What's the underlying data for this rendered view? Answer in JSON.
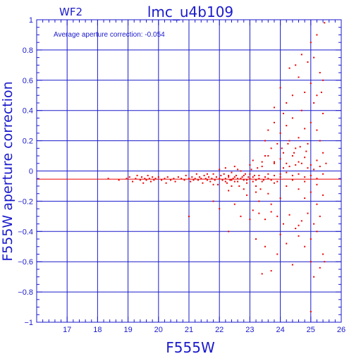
{
  "chart_data": {
    "type": "scatter",
    "title": "lmc_u4b109",
    "panel_label": "WF2",
    "xlabel": "F555W",
    "ylabel": "F555W aperture correction",
    "annotation": "Average aperture correction: -0.054",
    "xlim": [
      16,
      26
    ],
    "ylim": [
      -1,
      1
    ],
    "xticks": [
      17,
      18,
      19,
      20,
      21,
      22,
      23,
      24,
      25,
      26
    ],
    "yticks": [
      -1,
      -0.8,
      -0.6,
      -0.4,
      -0.2,
      0,
      0.2,
      0.4,
      0.6,
      0.8,
      1
    ],
    "ytick_labels": [
      "−1",
      "−0.8",
      "−0.6",
      "−0.4",
      "−0.2",
      "0",
      "0.2",
      "0.4",
      "0.6",
      "0.8",
      "1"
    ],
    "grid": true,
    "average_line_y": -0.054,
    "colors": {
      "axes": "#1a1acc",
      "points": "#ee0000",
      "average_line": "#ee0000",
      "background": "#ffffff"
    },
    "points": [
      [
        18.35,
        -0.05
      ],
      [
        18.7,
        -0.06
      ],
      [
        18.95,
        -0.05
      ],
      [
        19.05,
        -0.04
      ],
      [
        19.15,
        -0.07
      ],
      [
        19.25,
        -0.05
      ],
      [
        19.3,
        -0.03
      ],
      [
        19.4,
        -0.06
      ],
      [
        19.45,
        -0.04
      ],
      [
        19.5,
        -0.08
      ],
      [
        19.55,
        -0.05
      ],
      [
        19.6,
        -0.06
      ],
      [
        19.65,
        -0.03
      ],
      [
        19.7,
        -0.05
      ],
      [
        19.75,
        -0.07
      ],
      [
        19.8,
        -0.04
      ],
      [
        19.85,
        -0.06
      ],
      [
        19.9,
        -0.05
      ],
      [
        20.0,
        -0.04
      ],
      [
        20.1,
        -0.06
      ],
      [
        20.2,
        -0.05
      ],
      [
        20.25,
        -0.08
      ],
      [
        20.3,
        -0.04
      ],
      [
        20.4,
        -0.06
      ],
      [
        20.5,
        -0.05
      ],
      [
        20.55,
        -0.07
      ],
      [
        20.65,
        -0.04
      ],
      [
        20.75,
        -0.05
      ],
      [
        20.85,
        -0.06
      ],
      [
        20.9,
        -0.03
      ],
      [
        21.0,
        -0.05
      ],
      [
        21.05,
        -0.07
      ],
      [
        21.1,
        -0.04
      ],
      [
        21.15,
        -0.06
      ],
      [
        21.2,
        -0.05
      ],
      [
        21.25,
        -0.02
      ],
      [
        21.3,
        -0.06
      ],
      [
        21.35,
        -0.04
      ],
      [
        21.4,
        -0.05
      ],
      [
        21.45,
        -0.08
      ],
      [
        21.5,
        -0.03
      ],
      [
        21.55,
        -0.05
      ],
      [
        21.6,
        -0.06
      ],
      [
        21.65,
        -0.04
      ],
      [
        21.7,
        -0.07
      ],
      [
        21.75,
        -0.05
      ],
      [
        21.8,
        -0.02
      ],
      [
        21.85,
        -0.06
      ],
      [
        21.9,
        -0.04
      ],
      [
        21.95,
        -0.09
      ],
      [
        22.0,
        -0.05
      ],
      [
        22.05,
        -0.03
      ],
      [
        22.1,
        -0.06
      ],
      [
        22.15,
        -0.02
      ],
      [
        22.2,
        -0.05
      ],
      [
        22.25,
        -0.08
      ],
      [
        22.3,
        -0.04
      ],
      [
        22.35,
        -0.06
      ],
      [
        22.4,
        -0.01
      ],
      [
        22.45,
        -0.05
      ],
      [
        22.5,
        -0.07
      ],
      [
        22.55,
        -0.03
      ],
      [
        22.6,
        -0.05
      ],
      [
        22.65,
        -0.1
      ],
      [
        22.7,
        0.0
      ],
      [
        22.75,
        -0.04
      ],
      [
        22.8,
        -0.06
      ],
      [
        22.85,
        -0.02
      ],
      [
        22.9,
        -0.08
      ],
      [
        22.95,
        -0.04
      ],
      [
        23.0,
        -0.05
      ],
      [
        23.05,
        0.01
      ],
      [
        23.1,
        -0.07
      ],
      [
        23.15,
        -0.03
      ],
      [
        23.2,
        -0.1
      ],
      [
        23.25,
        0.02
      ],
      [
        23.3,
        -0.05
      ],
      [
        23.35,
        -0.12
      ],
      [
        23.4,
        0.03
      ],
      [
        23.45,
        -0.06
      ],
      [
        22.2,
        0.02
      ],
      [
        22.4,
        -0.1
      ],
      [
        22.6,
        0.01
      ],
      [
        22.8,
        -0.12
      ],
      [
        23.0,
        0.04
      ],
      [
        23.2,
        -0.14
      ],
      [
        23.4,
        0.06
      ],
      [
        23.6,
        -0.15
      ],
      [
        23.8,
        0.05
      ],
      [
        24.0,
        -0.18
      ],
      [
        21.6,
        -0.02
      ],
      [
        21.8,
        -0.09
      ],
      [
        22.0,
        0.01
      ],
      [
        22.3,
        -0.13
      ],
      [
        22.5,
        0.03
      ],
      [
        22.9,
        -0.16
      ],
      [
        23.1,
        0.07
      ],
      [
        23.3,
        -0.2
      ],
      [
        23.5,
        0.1
      ],
      [
        23.7,
        -0.22
      ],
      [
        21.0,
        -0.3
      ],
      [
        21.8,
        -0.2
      ],
      [
        22.0,
        -0.25
      ],
      [
        22.3,
        -0.4
      ],
      [
        22.5,
        -0.22
      ],
      [
        22.7,
        -0.3
      ],
      [
        23.0,
        -0.32
      ],
      [
        23.2,
        -0.45
      ],
      [
        23.5,
        -0.5
      ],
      [
        23.4,
        -0.68
      ],
      [
        23.7,
        -0.66
      ],
      [
        23.9,
        -0.55
      ],
      [
        24.2,
        -0.48
      ],
      [
        24.4,
        -0.62
      ],
      [
        24.6,
        -0.43
      ],
      [
        24.8,
        -0.5
      ],
      [
        25.0,
        -0.6
      ],
      [
        25.1,
        -0.7
      ],
      [
        25.3,
        -0.64
      ],
      [
        25.0,
        -0.93
      ],
      [
        25.2,
        -0.4
      ],
      [
        25.4,
        -0.55
      ],
      [
        25.45,
        -0.6
      ],
      [
        25.3,
        -0.3
      ],
      [
        25.1,
        -0.35
      ],
      [
        24.9,
        -0.28
      ],
      [
        24.7,
        -0.33
      ],
      [
        24.5,
        -0.38
      ],
      [
        24.3,
        -0.29
      ],
      [
        24.1,
        -0.35
      ],
      [
        23.9,
        -0.3
      ],
      [
        23.7,
        -0.27
      ],
      [
        23.5,
        -0.32
      ],
      [
        23.3,
        -0.28
      ],
      [
        23.1,
        -0.26
      ],
      [
        24.0,
        -0.42
      ],
      [
        24.6,
        -0.36
      ],
      [
        25.2,
        -0.22
      ],
      [
        24.8,
        -0.18
      ],
      [
        25.0,
        -0.45
      ],
      [
        23.5,
        0.2
      ],
      [
        23.6,
        0.27
      ],
      [
        23.7,
        0.15
      ],
      [
        23.8,
        0.32
      ],
      [
        23.9,
        0.18
      ],
      [
        24.0,
        0.25
      ],
      [
        24.1,
        0.12
      ],
      [
        24.2,
        0.3
      ],
      [
        24.3,
        0.2
      ],
      [
        24.4,
        0.35
      ],
      [
        24.5,
        0.15
      ],
      [
        24.6,
        0.22
      ],
      [
        24.7,
        0.4
      ],
      [
        24.8,
        0.28
      ],
      [
        24.9,
        0.18
      ],
      [
        25.0,
        0.32
      ],
      [
        25.1,
        0.45
      ],
      [
        25.2,
        0.27
      ],
      [
        25.3,
        0.2
      ],
      [
        25.4,
        0.38
      ],
      [
        24.0,
        0.55
      ],
      [
        24.2,
        0.45
      ],
      [
        24.4,
        0.5
      ],
      [
        24.6,
        0.62
      ],
      [
        24.8,
        0.52
      ],
      [
        25.0,
        0.58
      ],
      [
        25.2,
        0.5
      ],
      [
        25.4,
        0.6
      ],
      [
        24.3,
        0.68
      ],
      [
        24.5,
        0.7
      ],
      [
        24.9,
        0.72
      ],
      [
        25.1,
        0.75
      ],
      [
        25.3,
        0.65
      ],
      [
        25.0,
        0.85
      ],
      [
        25.45,
        0.98
      ],
      [
        25.2,
        0.9
      ],
      [
        24.7,
        0.77
      ],
      [
        25.35,
        0.52
      ],
      [
        24.1,
        0.38
      ],
      [
        23.8,
        0.42
      ],
      [
        23.6,
        0.1
      ],
      [
        23.8,
        0.06
      ],
      [
        24.0,
        0.08
      ],
      [
        24.2,
        0.05
      ],
      [
        24.4,
        0.1
      ],
      [
        24.6,
        0.06
      ],
      [
        24.8,
        0.09
      ],
      [
        25.0,
        0.04
      ],
      [
        25.2,
        0.07
      ],
      [
        25.4,
        0.12
      ],
      [
        23.6,
        -0.05
      ],
      [
        23.8,
        -0.08
      ],
      [
        24.0,
        -0.04
      ],
      [
        24.2,
        -0.1
      ],
      [
        24.4,
        -0.06
      ],
      [
        24.6,
        -0.12
      ],
      [
        24.8,
        -0.07
      ],
      [
        25.0,
        -0.14
      ],
      [
        25.2,
        -0.09
      ],
      [
        25.4,
        -0.16
      ],
      [
        22.1,
        -0.06
      ],
      [
        22.2,
        -0.07
      ],
      [
        22.3,
        -0.03
      ],
      [
        22.4,
        -0.06
      ],
      [
        22.5,
        -0.04
      ],
      [
        22.6,
        -0.07
      ],
      [
        22.7,
        -0.05
      ],
      [
        22.8,
        -0.03
      ],
      [
        22.9,
        -0.06
      ],
      [
        23.0,
        -0.02
      ],
      [
        23.1,
        -0.04
      ],
      [
        23.2,
        -0.06
      ],
      [
        23.3,
        -0.03
      ],
      [
        23.4,
        -0.07
      ],
      [
        23.5,
        -0.04
      ],
      [
        23.6,
        -0.02
      ],
      [
        23.7,
        -0.06
      ],
      [
        23.8,
        -0.03
      ],
      [
        23.9,
        -0.07
      ],
      [
        24.0,
        -0.02
      ],
      [
        24.1,
        0.02
      ],
      [
        24.2,
        -0.01
      ],
      [
        24.3,
        0.03
      ],
      [
        24.4,
        -0.03
      ],
      [
        24.5,
        0.04
      ],
      [
        24.6,
        -0.02
      ],
      [
        24.7,
        0.05
      ],
      [
        24.8,
        -0.04
      ],
      [
        24.9,
        0.02
      ],
      [
        25.0,
        -0.03
      ],
      [
        25.1,
        0.01
      ],
      [
        25.2,
        -0.05
      ],
      [
        25.3,
        0.03
      ],
      [
        25.4,
        -0.02
      ],
      [
        25.5,
        0.05
      ],
      [
        24.05,
        0.15
      ],
      [
        24.25,
        0.18
      ],
      [
        24.45,
        0.12
      ],
      [
        24.65,
        0.16
      ],
      [
        24.85,
        0.13
      ]
    ]
  }
}
